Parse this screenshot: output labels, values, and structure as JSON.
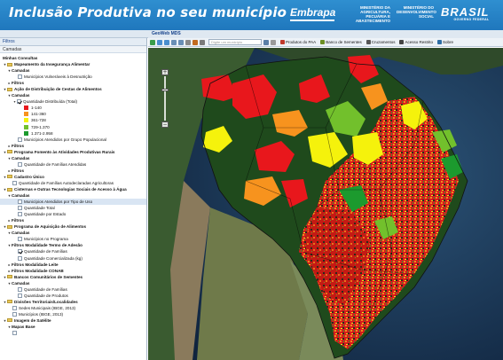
{
  "header": {
    "title": "Inclusão Produtiva no seu município",
    "logo_embrapa": "Embrapa",
    "ministry1": "MINISTÉRIO DA AGRICULTURA, PECUÁRIA E ABASTECIMENTO",
    "ministry2": "MINISTÉRIO DO DESENVOLVIMENTO SOCIAL",
    "logo_brasil": "BRASIL",
    "brasil_sub": "GOVERNO FEDERAL"
  },
  "sidebar": {
    "head": "Filtros",
    "sub": "Camadas",
    "tree": [
      {
        "label": "Minhas Consultas",
        "level": 1,
        "bold": true,
        "type": "text"
      },
      {
        "label": "Mapeamento da Insegurança Alimentar",
        "level": 1,
        "bold": true,
        "type": "folder",
        "arrow": "▾"
      },
      {
        "label": "Camadas",
        "level": 2,
        "bold": true,
        "type": "text",
        "arrow": "▾"
      },
      {
        "label": "Municípios Vulneráveis à Desnutrição",
        "level": 4,
        "type": "check",
        "checked": false
      },
      {
        "label": "Filtros",
        "level": 2,
        "bold": true,
        "type": "text",
        "arrow": "▸"
      },
      {
        "label": "Ação de Distribuição de Cestas de Alimentos",
        "level": 1,
        "bold": true,
        "type": "folder",
        "arrow": "▾"
      },
      {
        "label": "Camadas",
        "level": 2,
        "bold": true,
        "type": "text",
        "arrow": "▾"
      },
      {
        "label": "Quantidade Distribuída (Total)",
        "level": 3,
        "type": "check",
        "checked": true,
        "arrow": "▾"
      },
      {
        "label": "1-140",
        "level": 5,
        "type": "swatch",
        "color": "#e8171c"
      },
      {
        "label": "141-360",
        "level": 5,
        "type": "swatch",
        "color": "#f7931e"
      },
      {
        "label": "361-728",
        "level": 5,
        "type": "swatch",
        "color": "#f5f20c"
      },
      {
        "label": "729-1.370",
        "level": 5,
        "type": "swatch",
        "color": "#72c02c"
      },
      {
        "label": "1.371-2.958",
        "level": 5,
        "type": "swatch",
        "color": "#1c9a2e"
      },
      {
        "label": "Municípios Atendidos por Grupo Populacional",
        "level": 4,
        "type": "check",
        "checked": false
      },
      {
        "label": "Filtros",
        "level": 2,
        "bold": true,
        "type": "text",
        "arrow": "▸"
      },
      {
        "label": "Programa Fomento às Atividades Produtivas Rurais",
        "level": 1,
        "bold": true,
        "type": "folder",
        "arrow": "▾"
      },
      {
        "label": "Camadas",
        "level": 2,
        "bold": true,
        "type": "text",
        "arrow": "▾"
      },
      {
        "label": "Quantidade de Famílias Atendidas",
        "level": 4,
        "type": "check",
        "checked": false
      },
      {
        "label": "Filtros",
        "level": 2,
        "bold": true,
        "type": "text",
        "arrow": "▸"
      },
      {
        "label": "Cadastro Único",
        "level": 1,
        "bold": true,
        "type": "folder",
        "arrow": "▾"
      },
      {
        "label": "Quantidade de Famílias Autodeclaradas Agricultoras",
        "level": 3,
        "type": "check",
        "checked": false
      },
      {
        "label": "Cisternas e Outras Tecnologias Sociais de Acesso à Água",
        "level": 1,
        "bold": true,
        "type": "folder",
        "arrow": "▾"
      },
      {
        "label": "Camadas",
        "level": 2,
        "bold": true,
        "type": "text",
        "arrow": "▾"
      },
      {
        "label": "Municípios Atendidos por Tipo de Uso",
        "level": 4,
        "type": "check",
        "checked": false,
        "selected": true
      },
      {
        "label": "Quantidade Total",
        "level": 4,
        "type": "check",
        "checked": false
      },
      {
        "label": "Quantidade por Estado",
        "level": 4,
        "type": "check",
        "checked": false
      },
      {
        "label": "Filtros",
        "level": 2,
        "bold": true,
        "type": "text",
        "arrow": "▸"
      },
      {
        "label": "Programa de Aquisição de Alimentos",
        "level": 1,
        "bold": true,
        "type": "folder",
        "arrow": "▾"
      },
      {
        "label": "Camadas",
        "level": 2,
        "bold": true,
        "type": "text",
        "arrow": "▾"
      },
      {
        "label": "Municípios no Programa",
        "level": 4,
        "type": "check",
        "checked": false
      },
      {
        "label": "Filtros Modalidade Termo de Adesão",
        "level": 2,
        "bold": true,
        "type": "text",
        "arrow": "▾"
      },
      {
        "label": "Quantidade de Famílias",
        "level": 4,
        "type": "check",
        "checked": true
      },
      {
        "label": "Quantidade Comercializada (kg)",
        "level": 4,
        "type": "check",
        "checked": false
      },
      {
        "label": "Filtros Modalidade Leite",
        "level": 2,
        "bold": true,
        "type": "text",
        "arrow": "▸"
      },
      {
        "label": "Filtros Modalidade CONAB",
        "level": 2,
        "bold": true,
        "type": "text",
        "arrow": "▸"
      },
      {
        "label": "Bancos Comunitários de Sementes",
        "level": 1,
        "bold": true,
        "type": "folder",
        "arrow": "▾"
      },
      {
        "label": "Camadas",
        "level": 2,
        "bold": true,
        "type": "text",
        "arrow": "▾"
      },
      {
        "label": "Quantidade de Famílias",
        "level": 4,
        "type": "check",
        "checked": false
      },
      {
        "label": "Quantidade de Produtos",
        "level": 4,
        "type": "check",
        "checked": false
      },
      {
        "label": "Divisões Territoriais/Localidades",
        "level": 1,
        "bold": true,
        "type": "folder",
        "arrow": "▾"
      },
      {
        "label": "Sedes Municipais (IBGE, 2013)",
        "level": 3,
        "type": "check",
        "checked": false
      },
      {
        "label": "Municípios (IBGE, 2013)",
        "level": 3,
        "type": "check",
        "checked": false
      },
      {
        "label": "Imagem de Satélite",
        "level": 1,
        "bold": true,
        "type": "folder",
        "arrow": "▾"
      },
      {
        "label": "Mapas Base",
        "level": 2,
        "bold": true,
        "type": "text",
        "arrow": "▾"
      },
      {
        "label": "",
        "level": 3,
        "type": "check",
        "checked": false
      }
    ]
  },
  "map": {
    "panel_title": "GeoWeb MDS",
    "search_placeholder": "Digite um município",
    "buttons": [
      {
        "label": "Produtos do PAA",
        "icon": "basket-icon",
        "color": "#c0392b"
      },
      {
        "label": "Banco de Sementes",
        "icon": "seed-icon",
        "color": "#6b8e23"
      },
      {
        "label": "Cruzamentos",
        "icon": "cross-icon",
        "color": "#555555"
      },
      {
        "label": "Acesso Restrito",
        "icon": "lock-icon",
        "color": "#444444"
      },
      {
        "label": "Sobre",
        "icon": "info-icon",
        "color": "#2e6da4"
      }
    ],
    "zoom_in": "+",
    "zoom_out": "−"
  },
  "colors": {
    "range1": "#e8171c",
    "range2": "#f7931e",
    "range3": "#f5f20c",
    "range4": "#72c02c",
    "range5": "#1c9a2e"
  }
}
